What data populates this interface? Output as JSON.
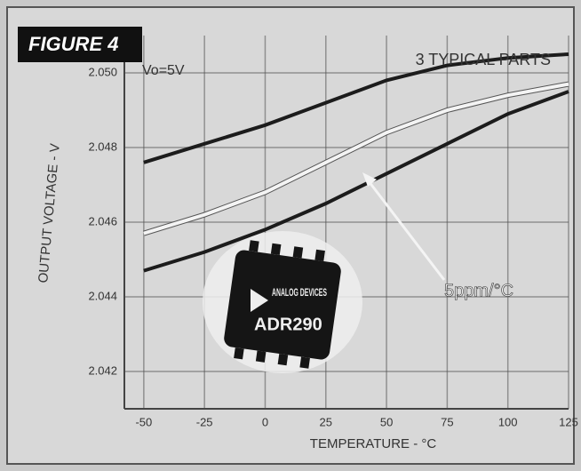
{
  "chart_data": {
    "type": "line",
    "badge": "FIGURE 4",
    "condition": "Vo=5V",
    "subtitle": "3 TYPICAL PARTS",
    "annotation": "5ppm/°C",
    "chip_brand": "ANALOG DEVICES",
    "chip_part": "ADR290",
    "xlabel": "TEMPERATURE - °C",
    "ylabel": "OUTPUT VOLTAGE - V",
    "x": [
      -50,
      -25,
      0,
      25,
      50,
      75,
      100,
      125
    ],
    "series": [
      {
        "color": "#1c1c1c",
        "values": [
          2.0476,
          2.0481,
          2.0486,
          2.0492,
          2.0498,
          2.0502,
          2.0504,
          2.0505
        ]
      },
      {
        "color": "#f4f4f4",
        "values": [
          2.0457,
          2.0462,
          2.0468,
          2.0476,
          2.0484,
          2.049,
          2.0494,
          2.0497
        ]
      },
      {
        "color": "#1c1c1c",
        "values": [
          2.0447,
          2.0452,
          2.0458,
          2.0465,
          2.0473,
          2.0481,
          2.0489,
          2.0495
        ]
      }
    ],
    "xlim": [
      -58,
      125
    ],
    "xticks": [
      -50,
      -25,
      0,
      25,
      50,
      75,
      100,
      125
    ],
    "ylim": [
      2.041,
      2.051
    ],
    "yticks": [
      2.042,
      2.044,
      2.046,
      2.048,
      {
        "value": 2.05,
        "label": "2.050"
      }
    ],
    "grid": true
  }
}
